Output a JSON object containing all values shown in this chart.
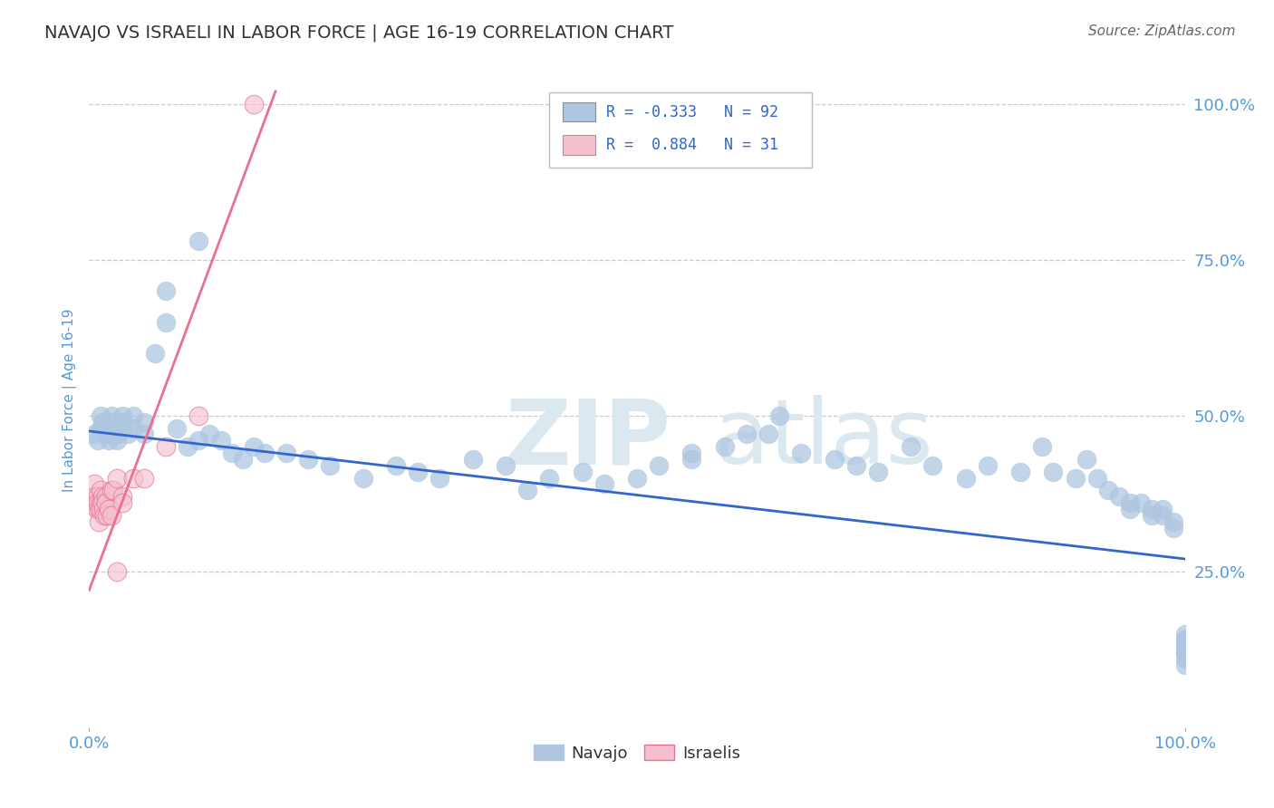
{
  "title": "NAVAJO VS ISRAELI IN LABOR FORCE | AGE 16-19 CORRELATION CHART",
  "source": "Source: ZipAtlas.com",
  "ylabel": "In Labor Force | Age 16-19",
  "y_tick_positions": [
    1.0,
    0.75,
    0.5,
    0.25
  ],
  "y_tick_labels_right": [
    "100.0%",
    "75.0%",
    "50.0%",
    "25.0%"
  ],
  "xlim": [
    0.0,
    1.0
  ],
  "ylim": [
    0.0,
    1.05
  ],
  "navajo_R": "-0.333",
  "navajo_N": "92",
  "israeli_R": "0.884",
  "israeli_N": "31",
  "navajo_color": "#aec6e0",
  "navajo_edge_color": "#aec6e0",
  "navajo_line_color": "#3266cc",
  "israeli_color": "#f5c0ce",
  "israeli_edge_color": "#e87090",
  "israeli_line_color": "#e87090",
  "background_color": "#ffffff",
  "grid_color": "#cccccc",
  "title_color": "#333333",
  "axis_label_color": "#5599dd",
  "tick_label_color": "#5599dd",
  "source_color": "#666666",
  "watermark_color": "#dce8f0",
  "legend_text_color": "#3266cc",
  "navajo_x": [
    0.005,
    0.008,
    0.01,
    0.01,
    0.012,
    0.015,
    0.015,
    0.018,
    0.02,
    0.02,
    0.02,
    0.025,
    0.025,
    0.03,
    0.03,
    0.03,
    0.035,
    0.04,
    0.04,
    0.05,
    0.05,
    0.06,
    0.07,
    0.07,
    0.08,
    0.09,
    0.1,
    0.1,
    0.11,
    0.12,
    0.13,
    0.14,
    0.15,
    0.16,
    0.18,
    0.2,
    0.22,
    0.25,
    0.28,
    0.3,
    0.32,
    0.35,
    0.38,
    0.4,
    0.42,
    0.45,
    0.47,
    0.5,
    0.52,
    0.55,
    0.55,
    0.58,
    0.6,
    0.62,
    0.63,
    0.65,
    0.68,
    0.7,
    0.72,
    0.75,
    0.77,
    0.8,
    0.82,
    0.85,
    0.87,
    0.88,
    0.9,
    0.91,
    0.92,
    0.93,
    0.94,
    0.95,
    0.95,
    0.96,
    0.97,
    0.97,
    0.98,
    0.98,
    0.99,
    0.99,
    1.0,
    1.0,
    1.0,
    1.0,
    1.0,
    1.0,
    1.0,
    1.0,
    1.0,
    1.0,
    1.0,
    1.0
  ],
  "navajo_y": [
    0.47,
    0.46,
    0.48,
    0.5,
    0.49,
    0.47,
    0.48,
    0.46,
    0.5,
    0.49,
    0.48,
    0.47,
    0.46,
    0.5,
    0.49,
    0.48,
    0.47,
    0.5,
    0.48,
    0.49,
    0.47,
    0.6,
    0.65,
    0.7,
    0.48,
    0.45,
    0.46,
    0.78,
    0.47,
    0.46,
    0.44,
    0.43,
    0.45,
    0.44,
    0.44,
    0.43,
    0.42,
    0.4,
    0.42,
    0.41,
    0.4,
    0.43,
    0.42,
    0.38,
    0.4,
    0.41,
    0.39,
    0.4,
    0.42,
    0.43,
    0.44,
    0.45,
    0.47,
    0.47,
    0.5,
    0.44,
    0.43,
    0.42,
    0.41,
    0.45,
    0.42,
    0.4,
    0.42,
    0.41,
    0.45,
    0.41,
    0.4,
    0.43,
    0.4,
    0.38,
    0.37,
    0.36,
    0.35,
    0.36,
    0.35,
    0.34,
    0.35,
    0.34,
    0.33,
    0.32,
    0.14,
    0.12,
    0.13,
    0.14,
    0.15,
    0.12,
    0.11,
    0.13,
    0.12,
    0.14,
    0.12,
    0.1
  ],
  "israeli_x": [
    0.005,
    0.005,
    0.006,
    0.007,
    0.008,
    0.008,
    0.009,
    0.009,
    0.01,
    0.01,
    0.01,
    0.012,
    0.012,
    0.013,
    0.014,
    0.015,
    0.015,
    0.016,
    0.018,
    0.02,
    0.02,
    0.022,
    0.025,
    0.025,
    0.03,
    0.03,
    0.04,
    0.05,
    0.07,
    0.1,
    0.15
  ],
  "israeli_y": [
    0.39,
    0.37,
    0.36,
    0.35,
    0.37,
    0.36,
    0.35,
    0.33,
    0.38,
    0.36,
    0.35,
    0.37,
    0.36,
    0.35,
    0.34,
    0.37,
    0.36,
    0.34,
    0.35,
    0.38,
    0.34,
    0.38,
    0.4,
    0.25,
    0.37,
    0.36,
    0.4,
    0.4,
    0.45,
    0.5,
    1.0
  ],
  "nav_line_x0": 0.0,
  "nav_line_x1": 1.0,
  "nav_line_y0": 0.475,
  "nav_line_y1": 0.27,
  "isr_line_x0": 0.0,
  "isr_line_x1": 0.17,
  "isr_line_y0": 0.22,
  "isr_line_y1": 1.02
}
